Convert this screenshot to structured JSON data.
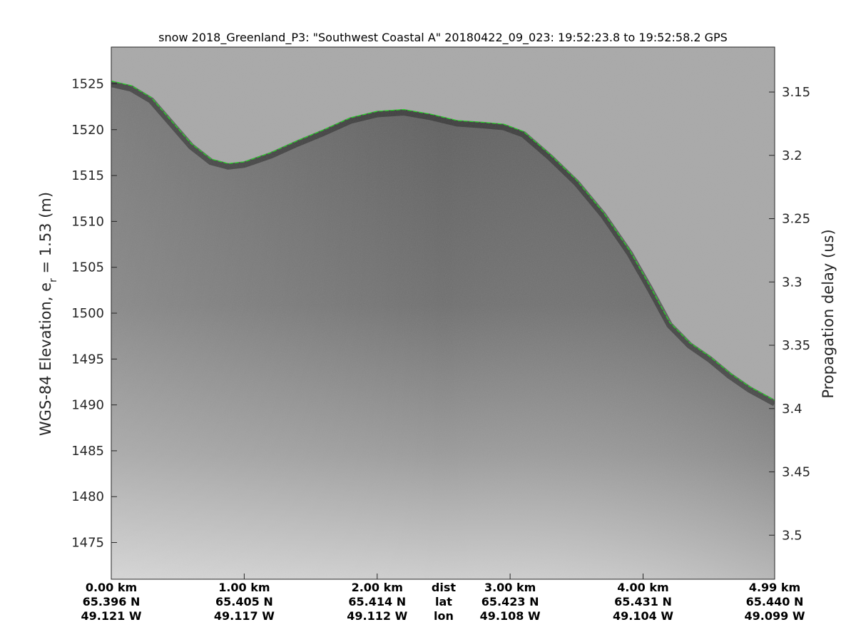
{
  "title": "snow 2018_Greenland_P3: \"Southwest Coastal A\"  20180422_09_023: 19:52:23.8 to 19:52:58.2 GPS",
  "chart_data": {
    "type": "heatmap",
    "title": "snow 2018_Greenland_P3: \"Southwest Coastal A\"  20180422_09_023: 19:52:23.8 to 19:52:58.2 GPS",
    "ylabel_main": "WGS-84 Elevation, e",
    "ylabel_sub": "r",
    "ylabel_tail": " = 1.53 (m)",
    "y2label": "Propagation delay (us)",
    "ylim": [
      1471,
      1529
    ],
    "y_ticks": [
      1475,
      1480,
      1485,
      1490,
      1495,
      1500,
      1505,
      1510,
      1515,
      1520,
      1525
    ],
    "y2_ticks": [
      {
        "label": "3.15",
        "elev": 1524.1
      },
      {
        "label": "3.2",
        "elev": 1517.2
      },
      {
        "label": "3.25",
        "elev": 1510.3
      },
      {
        "label": "3.3",
        "elev": 1503.4
      },
      {
        "label": "3.35",
        "elev": 1496.5
      },
      {
        "label": "3.4",
        "elev": 1489.6
      },
      {
        "label": "3.45",
        "elev": 1482.7
      },
      {
        "label": "3.5",
        "elev": 1475.8
      }
    ],
    "x_range_km": [
      0,
      4.99
    ],
    "x_ticks": [
      {
        "dist": "0.00 km",
        "lat": "65.396 N",
        "lon": "49.121 W",
        "km": 0.0
      },
      {
        "dist": "1.00 km",
        "lat": "65.405 N",
        "lon": "49.117 W",
        "km": 1.0
      },
      {
        "dist": "2.00 km",
        "lat": "65.414 N",
        "lon": "49.112 W",
        "km": 2.0
      },
      {
        "dist": "3.00 km",
        "lat": "65.423 N",
        "lon": "49.108 W",
        "km": 3.0
      },
      {
        "dist": "4.00 km",
        "lat": "65.431 N",
        "lon": "49.104 W",
        "km": 4.0
      },
      {
        "dist": "4.99 km",
        "lat": "65.440 N",
        "lon": "49.099 W",
        "km": 4.99
      }
    ],
    "row_labels": {
      "dist": "dist",
      "lat": "lat",
      "lon": "lon",
      "km": 2.5
    },
    "surface_layer": {
      "name": "surface",
      "color": "#22dd22",
      "points": [
        [
          0.0,
          1525.3
        ],
        [
          0.15,
          1524.8
        ],
        [
          0.3,
          1523.5
        ],
        [
          0.45,
          1521.0
        ],
        [
          0.6,
          1518.5
        ],
        [
          0.75,
          1516.8
        ],
        [
          0.88,
          1516.3
        ],
        [
          1.0,
          1516.5
        ],
        [
          1.2,
          1517.5
        ],
        [
          1.4,
          1518.8
        ],
        [
          1.6,
          1520.0
        ],
        [
          1.8,
          1521.3
        ],
        [
          2.0,
          1522.0
        ],
        [
          2.2,
          1522.2
        ],
        [
          2.4,
          1521.7
        ],
        [
          2.6,
          1521.0
        ],
        [
          2.8,
          1520.8
        ],
        [
          2.95,
          1520.6
        ],
        [
          3.1,
          1519.8
        ],
        [
          3.3,
          1517.3
        ],
        [
          3.5,
          1514.5
        ],
        [
          3.7,
          1511.0
        ],
        [
          3.9,
          1506.8
        ],
        [
          4.05,
          1503.0
        ],
        [
          4.2,
          1499.0
        ],
        [
          4.35,
          1496.8
        ],
        [
          4.5,
          1495.3
        ],
        [
          4.65,
          1493.5
        ],
        [
          4.8,
          1492.0
        ],
        [
          4.99,
          1490.5
        ]
      ]
    }
  }
}
